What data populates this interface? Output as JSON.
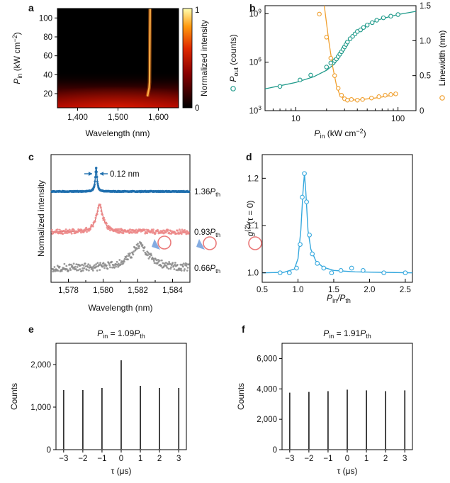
{
  "colors": {
    "teal": "#1f9a8a",
    "orange": "#f0a030",
    "blue": "#1f6fae",
    "salmon": "#ec8787",
    "gray": "#8a8a8a",
    "lightblue": "#35a8de",
    "watermark": "#e34d4d"
  },
  "panels": {
    "a": {
      "label": "a",
      "xlabel": "Wavelength (nm)",
      "ylabel_main": "P",
      "ylabel_sub": "in",
      "ylabel_unit": " (kW cm",
      "ylabel_sup": "−2",
      "ylabel_close": ")",
      "xticks": [
        "1,400",
        "1,500",
        "1,600"
      ],
      "yticks": [
        "20",
        "40",
        "60",
        "80",
        "100"
      ],
      "colorbar_label": "Normalized intensity",
      "colorbar_ticks": [
        "1",
        "0"
      ]
    },
    "b": {
      "label": "b",
      "xlabel_main": "P",
      "xlabel_sub": "in",
      "xlabel_unit": " (kW cm",
      "xlabel_sup": "−2",
      "xlabel_close": ")",
      "ylabel_left_main": "P",
      "ylabel_left_sub": "out",
      "ylabel_left_unit": " (counts)",
      "ylabel_right": "Linewidth (nm)",
      "xticks": [
        "10",
        "100"
      ],
      "yticks_left_base": [
        "10",
        "10",
        "10"
      ],
      "yticks_left_exp": [
        "3",
        "6",
        "9"
      ],
      "yticks_right": [
        "0",
        "0.5",
        "1.0",
        "1.5"
      ]
    },
    "c": {
      "label": "c",
      "xlabel": "Wavelength (nm)",
      "ylabel": "Normalized intensity",
      "xticks": [
        "1,578",
        "1,580",
        "1,582",
        "1,584"
      ],
      "annotation": "0.12 nm",
      "trace_labels": [
        {
          "value": "1.36",
          "sym": "P",
          "sub": "th"
        },
        {
          "value": "0.93",
          "sym": "P",
          "sub": "th"
        },
        {
          "value": "0.66",
          "sym": "P",
          "sub": "th"
        }
      ]
    },
    "d": {
      "label": "d",
      "xlabel_main": "P",
      "xlabel_sub1": "in",
      "xlabel_mid": "/P",
      "xlabel_sub2": "th",
      "ylabel_main": "g",
      "ylabel_sup": "(2)",
      "ylabel_rest": "(τ = 0)",
      "xticks": [
        "0.5",
        "1.0",
        "1.5",
        "2.0",
        "2.5"
      ],
      "yticks": [
        "1.0",
        "1.1",
        "1.2"
      ]
    },
    "e": {
      "label": "e",
      "title_main": "P",
      "title_sub": "in",
      "title_rest": " = 1.09",
      "title_sym": "P",
      "title_sub2": "th",
      "xlabel": "τ (μs)",
      "ylabel": "Counts",
      "xticks": [
        "−3",
        "−2",
        "−1",
        "0",
        "1",
        "2",
        "3"
      ],
      "yticks": [
        "0",
        "1,000",
        "2,000"
      ]
    },
    "f": {
      "label": "f",
      "title_main": "P",
      "title_sub": "in",
      "title_rest": " = 1.91",
      "title_sym": "P",
      "title_sub2": "th",
      "xlabel": "τ (μs)",
      "ylabel": "Counts",
      "xticks": [
        "−3",
        "−2",
        "−1",
        "0",
        "1",
        "2",
        "3"
      ],
      "yticks": [
        "0",
        "2,000",
        "4,000",
        "6,000"
      ]
    }
  },
  "chart_data": [
    {
      "id": "a",
      "type": "heatmap",
      "xlabel": "Wavelength (nm)",
      "ylabel": "P_in (kW cm^-2)",
      "xlim": [
        1350,
        1650
      ],
      "ylim": [
        5,
        110
      ],
      "colorbar": {
        "label": "Normalized intensity",
        "range": [
          0,
          1
        ]
      },
      "lasing_line": [
        {
          "x": 1573,
          "y": 17
        },
        {
          "x": 1575,
          "y": 22
        },
        {
          "x": 1577,
          "y": 26
        },
        {
          "x": 1578,
          "y": 32
        },
        {
          "x": 1578.5,
          "y": 50
        },
        {
          "x": 1579,
          "y": 80
        },
        {
          "x": 1579.5,
          "y": 110
        }
      ],
      "broad_emission_below_pin": 28
    },
    {
      "id": "b",
      "type": "scatter",
      "xlabel": "P_in (kW cm^-2)",
      "ylabel_left": "P_out (counts)",
      "ylabel_right": "Linewidth (nm)",
      "xscale": "log",
      "xlim": [
        5,
        150
      ],
      "ylim_left_log10": [
        3,
        9.5
      ],
      "ylim_right": [
        0,
        1.5
      ],
      "series": [
        {
          "name": "P_out",
          "axis": "left",
          "x": [
            7,
            11,
            14,
            20,
            22,
            24,
            25,
            26,
            27,
            28,
            29,
            30,
            31,
            32,
            34,
            36,
            38,
            40,
            43,
            46,
            50,
            56,
            62,
            72,
            85,
            100
          ],
          "y_log10": [
            4.5,
            4.9,
            5.2,
            5.7,
            5.95,
            6.1,
            6.2,
            6.35,
            6.5,
            6.65,
            6.8,
            6.95,
            7.1,
            7.25,
            7.45,
            7.6,
            7.75,
            7.9,
            8.0,
            8.15,
            8.3,
            8.45,
            8.6,
            8.75,
            8.85,
            8.95
          ]
        },
        {
          "name": "P_out fit",
          "axis": "left",
          "x": [
            5,
            10,
            15,
            20,
            24,
            27,
            30,
            34,
            40,
            50,
            70,
            100,
            150
          ],
          "y_log10": [
            4.35,
            4.75,
            5.1,
            5.5,
            5.9,
            6.4,
            6.95,
            7.5,
            7.95,
            8.35,
            8.7,
            8.95,
            9.15
          ]
        },
        {
          "name": "Linewidth",
          "axis": "right",
          "x": [
            17,
            20,
            22,
            24,
            26,
            28,
            30,
            32,
            35,
            40,
            45,
            55,
            65,
            75,
            85,
            95
          ],
          "y": [
            1.38,
            1.05,
            0.75,
            0.5,
            0.32,
            0.22,
            0.17,
            0.15,
            0.16,
            0.15,
            0.16,
            0.18,
            0.2,
            0.22,
            0.23,
            0.24
          ]
        },
        {
          "name": "Linewidth fit",
          "axis": "right",
          "x": [
            19,
            21,
            23,
            25,
            27,
            30,
            35,
            45,
            60,
            80,
            100
          ],
          "y": [
            1.5,
            1.0,
            0.62,
            0.36,
            0.22,
            0.16,
            0.15,
            0.16,
            0.18,
            0.21,
            0.24
          ]
        }
      ]
    },
    {
      "id": "c",
      "type": "line",
      "xlabel": "Wavelength (nm)",
      "ylabel": "Normalized intensity",
      "xlim": [
        1577,
        1585
      ],
      "series": [
        {
          "name": "1.36 P_th",
          "center": 1579.6,
          "fwhm": 0.12,
          "noise": "low"
        },
        {
          "name": "0.93 P_th",
          "center": 1579.8,
          "fwhm": 0.45,
          "noise": "medium"
        },
        {
          "name": "0.66 P_th",
          "center": 1582.1,
          "fwhm": 1.2,
          "noise": "high"
        }
      ],
      "annotations": [
        "0.12 nm"
      ]
    },
    {
      "id": "d",
      "type": "scatter",
      "xlabel": "P_in/P_th",
      "ylabel": "g2(τ = 0)",
      "xlim": [
        0.5,
        2.6
      ],
      "ylim": [
        0.98,
        1.25
      ],
      "series": [
        {
          "name": "data",
          "x": [
            0.75,
            0.88,
            0.98,
            1.03,
            1.06,
            1.09,
            1.12,
            1.16,
            1.2,
            1.27,
            1.36,
            1.47,
            1.6,
            1.75,
            1.91,
            2.2,
            2.5
          ],
          "y": [
            1.0,
            1.0,
            1.01,
            1.06,
            1.16,
            1.21,
            1.15,
            1.08,
            1.04,
            1.02,
            1.01,
            1.0,
            1.005,
            1.01,
            1.005,
            1.0,
            1.0
          ]
        },
        {
          "name": "fit",
          "x": [
            0.5,
            0.8,
            0.95,
            1.0,
            1.04,
            1.07,
            1.09,
            1.11,
            1.14,
            1.18,
            1.25,
            1.35,
            1.5,
            1.8,
            2.2,
            2.6
          ],
          "y": [
            1.0,
            1.001,
            1.008,
            1.03,
            1.09,
            1.17,
            1.21,
            1.17,
            1.09,
            1.05,
            1.025,
            1.012,
            1.005,
            1.002,
            1.001,
            1.0
          ]
        }
      ]
    },
    {
      "id": "e",
      "type": "bar",
      "title": "P_in = 1.09 P_th",
      "xlabel": "τ (μs)",
      "ylabel": "Counts",
      "xlim": [
        -3.4,
        3.4
      ],
      "ylim": [
        0,
        2500
      ],
      "categories": [
        "−3",
        "−2",
        "−1",
        "0",
        "1",
        "2",
        "3"
      ],
      "x": [
        -3,
        -2,
        -1,
        0,
        1,
        2,
        3
      ],
      "values": [
        1400,
        1400,
        1450,
        2100,
        1500,
        1450,
        1450
      ]
    },
    {
      "id": "f",
      "type": "bar",
      "title": "P_in = 1.91 P_th",
      "xlabel": "τ (μs)",
      "ylabel": "Counts",
      "xlim": [
        -3.4,
        3.4
      ],
      "ylim": [
        0,
        7000
      ],
      "categories": [
        "−3",
        "−2",
        "−1",
        "0",
        "1",
        "2",
        "3"
      ],
      "x": [
        -3,
        -2,
        -1,
        0,
        1,
        2,
        3
      ],
      "values": [
        3750,
        3800,
        3850,
        3950,
        3900,
        3850,
        3900
      ]
    }
  ]
}
